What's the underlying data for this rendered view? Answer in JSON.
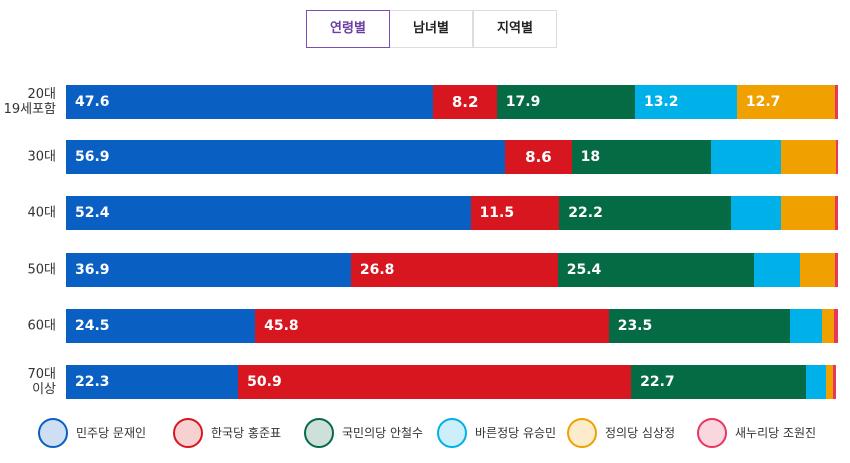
{
  "tabs": {
    "items": [
      "연령별",
      "남녀별",
      "지역별"
    ],
    "active": 0
  },
  "chart_data": {
    "type": "stacked-bar",
    "orientation": "horizontal",
    "categories": [
      "20대\n19세포함",
      "30대",
      "40대",
      "50대",
      "60대",
      "70대\n이상"
    ],
    "xlim": [
      0,
      100
    ],
    "series": [
      {
        "name": "민주당 문재인",
        "color": "#0a5fc2",
        "values": [
          47.6,
          56.9,
          52.4,
          36.9,
          24.5,
          22.3
        ],
        "show_labels": [
          true,
          true,
          true,
          true,
          true,
          true
        ]
      },
      {
        "name": "한국당 홍준표",
        "color": "#d7161f",
        "values": [
          8.2,
          8.6,
          11.5,
          26.8,
          45.8,
          50.9
        ],
        "show_labels": [
          true,
          true,
          true,
          true,
          true,
          true
        ]
      },
      {
        "name": "국민의당 안철수",
        "color": "#056b45",
        "values": [
          17.9,
          18.0,
          22.2,
          25.4,
          23.5,
          22.7
        ],
        "show_labels": [
          true,
          true,
          true,
          true,
          true,
          true
        ]
      },
      {
        "name": "바른정당 유승민",
        "color": "#00b0e8",
        "values": [
          13.2,
          9.1,
          6.5,
          6.0,
          4.1,
          2.6
        ],
        "show_labels": [
          true,
          false,
          false,
          false,
          false,
          false
        ]
      },
      {
        "name": "정의당 심상정",
        "color": "#f0a100",
        "values": [
          12.7,
          7.1,
          7.0,
          4.5,
          1.6,
          0.8
        ],
        "show_labels": [
          true,
          false,
          false,
          false,
          false,
          false
        ]
      },
      {
        "name": "새누리당 조원진",
        "color": "#e8365e",
        "values": [
          0.4,
          0.3,
          0.4,
          0.4,
          0.5,
          0.4
        ],
        "show_labels": [
          false,
          false,
          false,
          false,
          false,
          false
        ]
      }
    ]
  }
}
